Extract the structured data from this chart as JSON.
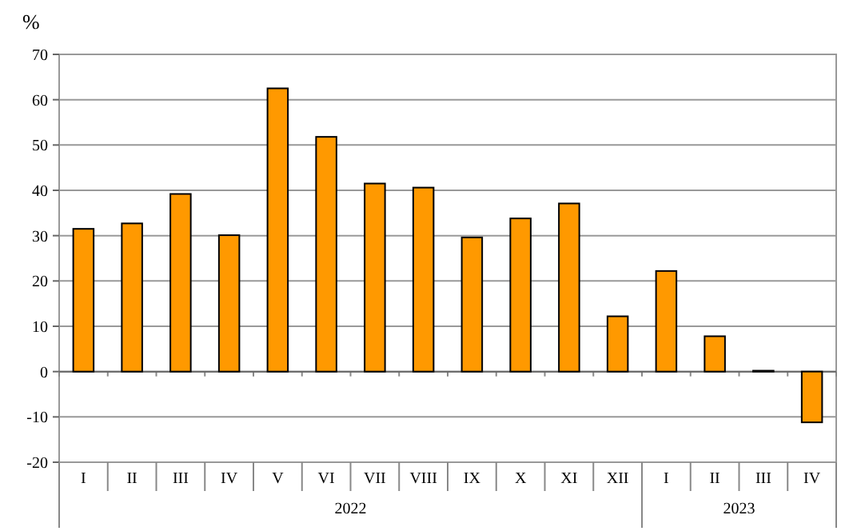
{
  "chart_data": {
    "type": "bar",
    "ylabel": "%",
    "categories": [
      "I",
      "II",
      "III",
      "IV",
      "V",
      "VI",
      "VII",
      "VIII",
      "IX",
      "X",
      "XI",
      "XII",
      "I",
      "II",
      "III",
      "IV"
    ],
    "values": [
      31.5,
      32.7,
      39.2,
      30.1,
      62.5,
      51.8,
      41.5,
      40.6,
      29.6,
      33.8,
      37.1,
      12.2,
      22.2,
      7.8,
      0.2,
      -11.2
    ],
    "color": "#ff9900",
    "ylim": [
      -20,
      70
    ],
    "yticks": [
      -20,
      -10,
      0,
      10,
      20,
      30,
      40,
      50,
      60,
      70
    ],
    "grid": "y",
    "annotations": [
      "2022",
      "2023"
    ]
  }
}
